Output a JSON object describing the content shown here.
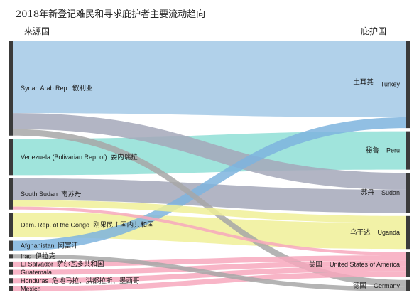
{
  "chart_data": {
    "type": "sankey",
    "title": "2018年新登记难民和寻求庇护者主要流动趋向",
    "source_header": "来源国",
    "destination_header": "庇护国",
    "sources": [
      {
        "id": "syria",
        "en": "Syrian Arab Rep.",
        "zh": "叙利亚"
      },
      {
        "id": "venezuela",
        "en": "Venezuela (Bolivarian Rep. of)",
        "zh": "委内瑞拉"
      },
      {
        "id": "ssudan",
        "en": "South Sudan",
        "zh": "南苏丹"
      },
      {
        "id": "drc",
        "en": "Dem. Rep. of the Congo",
        "zh": "刚果民主国内共和国"
      },
      {
        "id": "afghanistan",
        "en": "Afghanistan",
        "zh": "阿富汗"
      },
      {
        "id": "iraq",
        "en": "Iraq",
        "zh": "伊拉克"
      },
      {
        "id": "elsalvador",
        "en": "El Salvador",
        "zh": "萨尔瓦多共和国"
      },
      {
        "id": "guatemala",
        "en": "Guatemala",
        "zh": ""
      },
      {
        "id": "honduras",
        "en": "Honduras",
        "zh": "危地马拉、洪都拉斯、墨西哥"
      },
      {
        "id": "mexico",
        "en": "Mexico",
        "zh": ""
      }
    ],
    "destinations": [
      {
        "id": "turkey",
        "en": "Turkey",
        "zh": "土耳其"
      },
      {
        "id": "peru",
        "en": "Peru",
        "zh": "秘鲁"
      },
      {
        "id": "sudan",
        "en": "Sudan",
        "zh": "苏丹"
      },
      {
        "id": "uganda",
        "en": "Uganda",
        "zh": "乌干达"
      },
      {
        "id": "usa",
        "en": "United States of America",
        "zh": "美国"
      },
      {
        "id": "germany",
        "en": "Germany",
        "zh": "德国"
      }
    ],
    "flows": [
      {
        "source": "syria",
        "target": "turkey",
        "value": 100,
        "color": "#a3c9e6"
      },
      {
        "source": "syria",
        "target": "sudan",
        "value": 22,
        "color": "#a5a8ba"
      },
      {
        "source": "syria",
        "target": "germany",
        "value": 9,
        "color": "#a7a7a7"
      },
      {
        "source": "venezuela",
        "target": "peru",
        "value": 50,
        "color": "#8fdfd6"
      },
      {
        "source": "ssudan",
        "target": "sudan",
        "value": 30,
        "color": "#a5a8ba"
      },
      {
        "source": "ssudan",
        "target": "uganda",
        "value": 9,
        "color": "#f0f098"
      },
      {
        "source": "drc",
        "target": "uganda",
        "value": 34,
        "color": "#f0f098"
      },
      {
        "source": "afghanistan",
        "target": "turkey",
        "value": 14,
        "color": "#7eb4de"
      },
      {
        "source": "iraq",
        "target": "germany",
        "value": 6,
        "color": "#a7a7a7"
      },
      {
        "source": "elsalvador",
        "target": "usa",
        "value": 7,
        "color": "#f7a8bd"
      },
      {
        "source": "guatemala",
        "target": "usa",
        "value": 7,
        "color": "#f7a8bd"
      },
      {
        "source": "honduras",
        "target": "usa",
        "value": 7,
        "color": "#f7a8bd"
      },
      {
        "source": "mexico",
        "target": "usa",
        "value": 7,
        "color": "#f7a8bd"
      },
      {
        "source": "ssudan",
        "target": "usa",
        "value": 4,
        "color": "#f7a8bd"
      }
    ]
  }
}
